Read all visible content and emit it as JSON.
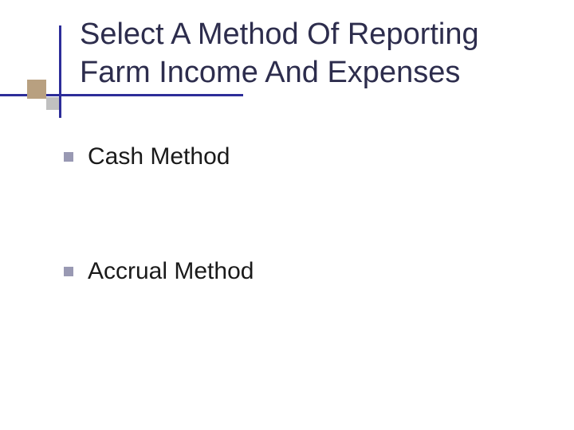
{
  "slide": {
    "title": "Select A Method Of Reporting Farm Income And Expenses",
    "bullets": [
      {
        "text": "Cash Method"
      },
      {
        "text": "Accrual Method"
      }
    ]
  },
  "style": {
    "type": "infographic",
    "background_color": "#ffffff",
    "title_color": "#2d2d4d",
    "title_fontsize": 38,
    "bullet_fontsize": 30,
    "bullet_color": "#1a1a1a",
    "bullet_marker_color": "#9999b3",
    "bullet_marker_size": 12,
    "line_color": "#2d2d99",
    "accent_square1_color": "#b8a080",
    "accent_square2_color": "#c0c0c0",
    "font_family": "Verdana"
  }
}
